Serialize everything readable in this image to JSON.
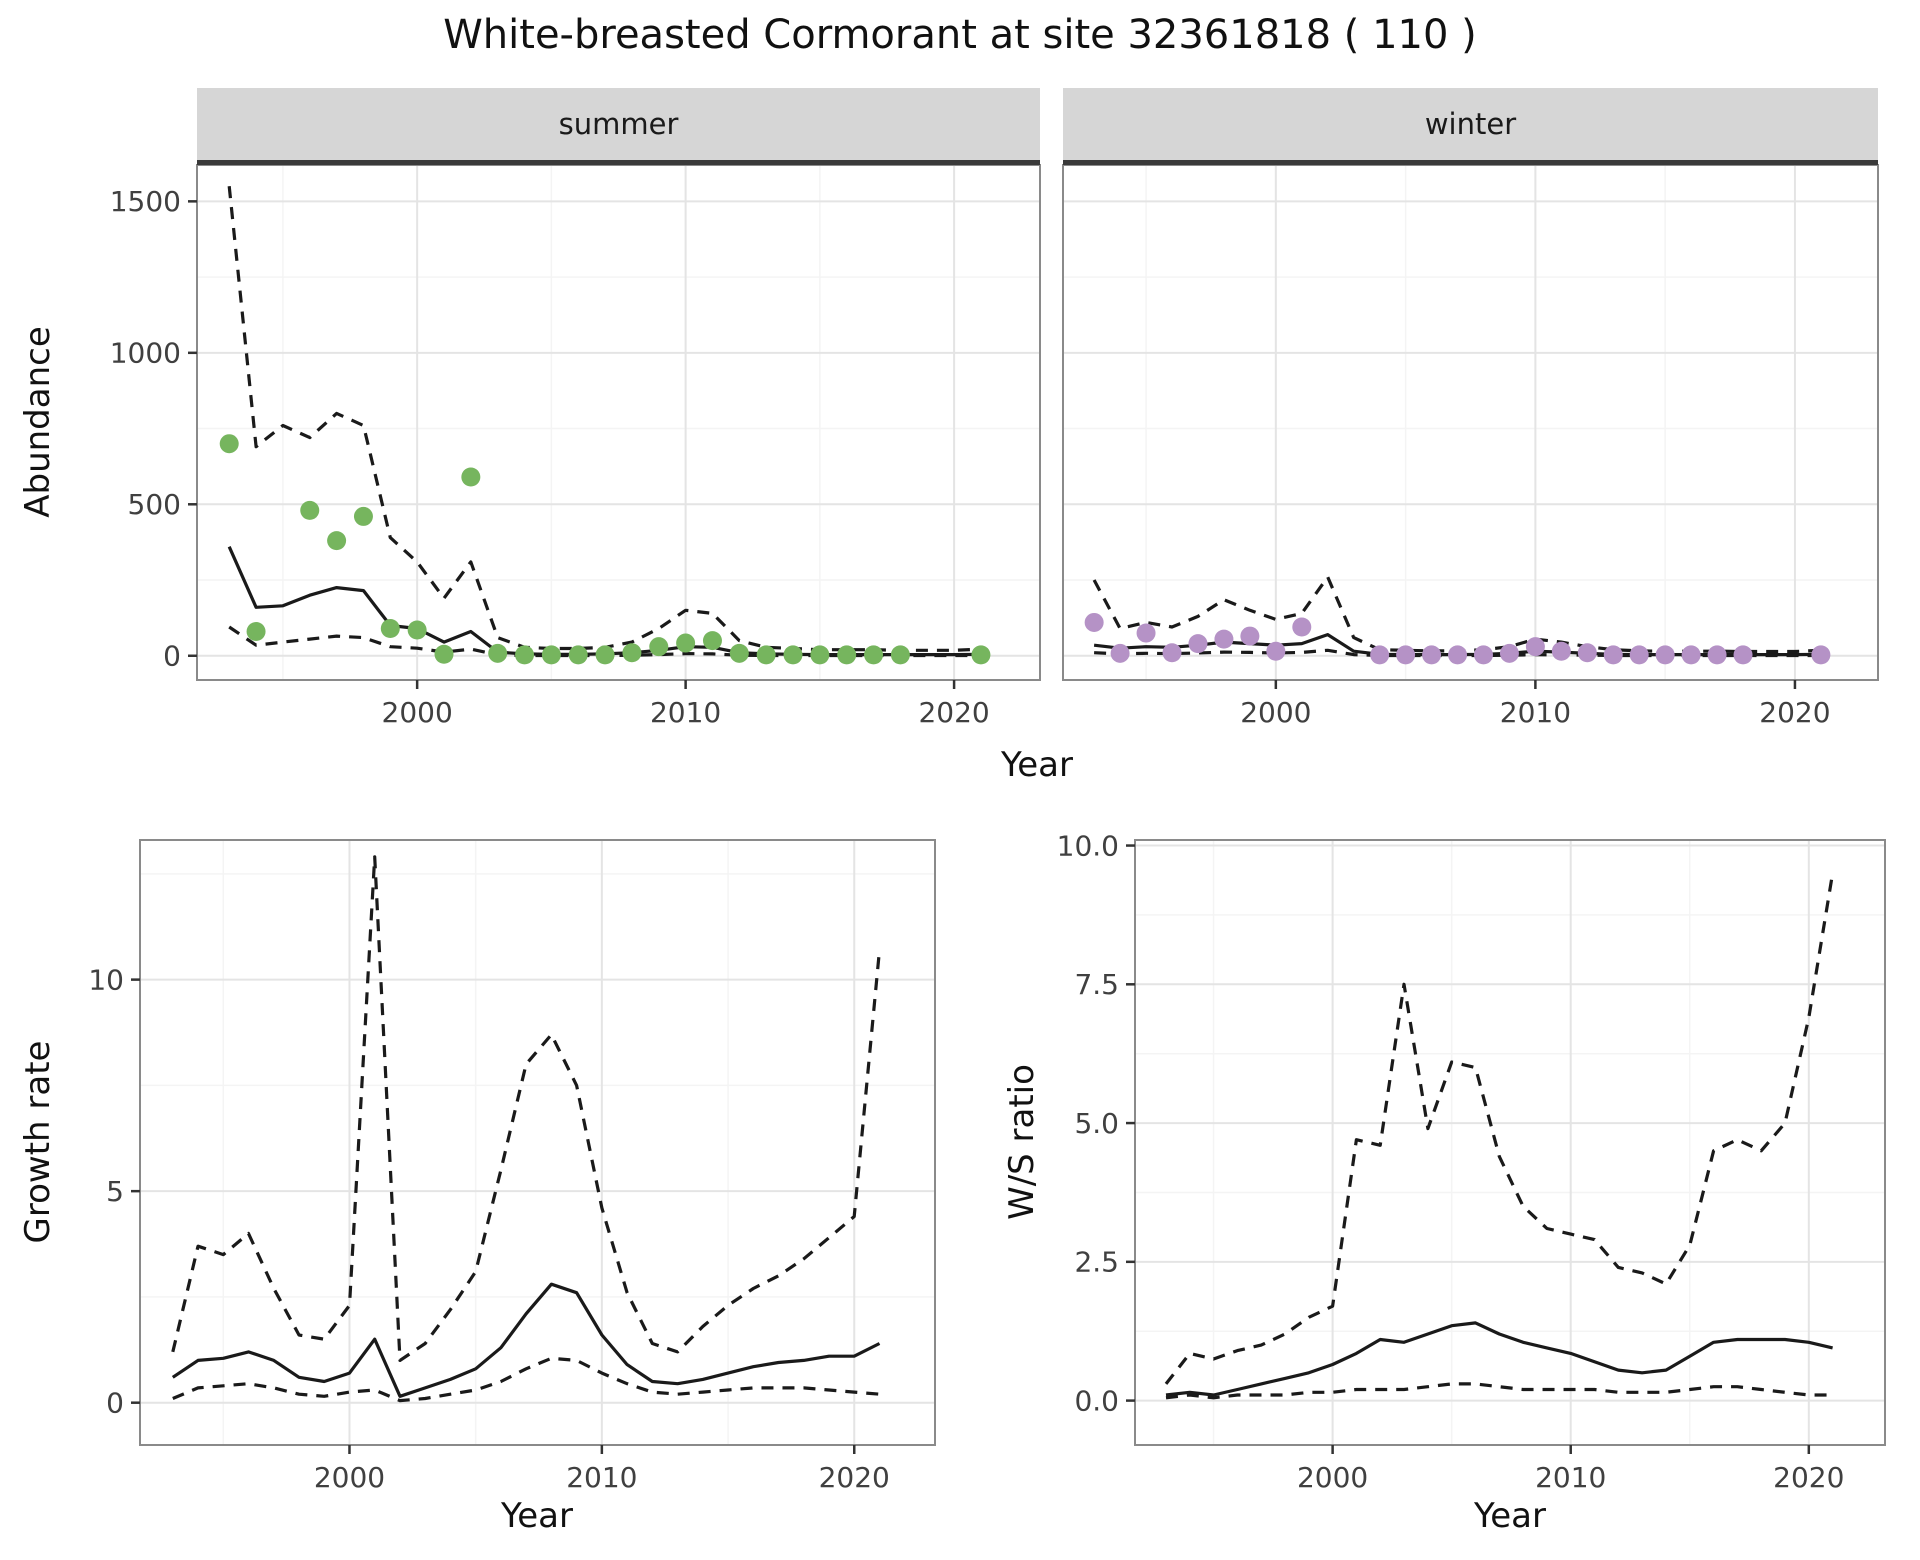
{
  "title": "White-breasted Cormorant at site 32361818 ( 110 )",
  "colors": {
    "summer_points": "#76b55e",
    "winter_points": "#b592c6",
    "line": "#1a1a1a",
    "strip_background": "#d6d6d6",
    "grid_major": "#e4e4e4",
    "grid_minor": "#f4f4f4",
    "panel_border": "#8a8a8a",
    "axis": "#333333"
  },
  "chart_data": [
    {
      "id": "abundance",
      "type": "scatter",
      "title": "White-breasted Cormorant at site 32361818 ( 110 )",
      "xlabel": "Year",
      "ylabel": "Abundance",
      "grid": true,
      "legend": "none",
      "x": [
        1993,
        1994,
        1995,
        1996,
        1997,
        1998,
        1999,
        2000,
        2001,
        2002,
        2003,
        2004,
        2005,
        2006,
        2007,
        2008,
        2009,
        2010,
        2011,
        2012,
        2013,
        2014,
        2015,
        2016,
        2017,
        2018,
        2019,
        2020,
        2021
      ],
      "xticks": [
        2000,
        2010,
        2020
      ],
      "xtick_labels": [
        "2000",
        "2010",
        "2020"
      ],
      "yticks": [
        0,
        500,
        1000,
        1500
      ],
      "ytick_labels": [
        "0",
        "500",
        "1000",
        "1500"
      ],
      "xlim": [
        1991.8,
        2023.2
      ],
      "ylim": [
        -80,
        1620
      ],
      "facets": [
        {
          "label": "summer",
          "point_color": "#76b55e",
          "points": [
            700,
            80,
            null,
            480,
            380,
            460,
            90,
            85,
            5,
            590,
            8,
            3,
            3,
            3,
            3,
            10,
            30,
            42,
            50,
            8,
            3,
            3,
            3,
            3,
            3,
            3,
            null,
            null,
            3
          ],
          "series": [
            {
              "name": "fit",
              "style": "solid",
              "values": [
                360,
                160,
                165,
                200,
                225,
                215,
                100,
                90,
                45,
                80,
                12,
                6,
                5,
                5,
                6,
                10,
                18,
                30,
                28,
                10,
                6,
                5,
                4,
                4,
                4,
                4,
                4,
                4,
                5
              ]
            },
            {
              "name": "upper95",
              "style": "dashed",
              "values": [
                1550,
                690,
                760,
                720,
                800,
                760,
                390,
                310,
                190,
                310,
                60,
                28,
                24,
                24,
                28,
                45,
                90,
                150,
                140,
                50,
                28,
                24,
                20,
                20,
                20,
                18,
                18,
                18,
                22
              ]
            },
            {
              "name": "lower95",
              "style": "dashed",
              "values": [
                95,
                35,
                45,
                55,
                65,
                60,
                30,
                25,
                12,
                22,
                3,
                1,
                1,
                1,
                1,
                2,
                4,
                7,
                6,
                2,
                1,
                1,
                1,
                1,
                1,
                1,
                1,
                1,
                1
              ]
            }
          ]
        },
        {
          "label": "winter",
          "point_color": "#b592c6",
          "points": [
            110,
            8,
            75,
            10,
            40,
            55,
            65,
            15,
            95,
            null,
            null,
            3,
            3,
            3,
            3,
            3,
            8,
            30,
            15,
            10,
            3,
            3,
            3,
            3,
            3,
            3,
            null,
            null,
            3
          ],
          "series": [
            {
              "name": "fit",
              "style": "solid",
              "values": [
                35,
                25,
                30,
                28,
                35,
                45,
                40,
                35,
                40,
                70,
                15,
                5,
                4,
                4,
                4,
                5,
                8,
                15,
                12,
                8,
                5,
                4,
                4,
                4,
                4,
                4,
                4,
                4,
                5
              ]
            },
            {
              "name": "upper95",
              "style": "dashed",
              "values": [
                250,
                90,
                110,
                95,
                130,
                185,
                150,
                120,
                140,
                260,
                60,
                20,
                18,
                16,
                16,
                20,
                30,
                55,
                45,
                30,
                20,
                16,
                15,
                15,
                15,
                14,
                14,
                14,
                18
              ]
            },
            {
              "name": "lower95",
              "style": "dashed",
              "values": [
                10,
                6,
                8,
                7,
                9,
                12,
                11,
                9,
                11,
                18,
                4,
                1,
                1,
                1,
                1,
                1,
                2,
                4,
                3,
                2,
                1,
                1,
                1,
                1,
                1,
                1,
                1,
                1,
                1
              ]
            }
          ]
        }
      ]
    },
    {
      "id": "growth_rate",
      "type": "line",
      "xlabel": "Year",
      "ylabel": "Growth rate",
      "grid": true,
      "legend": "none",
      "x": [
        1993,
        1994,
        1995,
        1996,
        1997,
        1998,
        1999,
        2000,
        2001,
        2002,
        2003,
        2004,
        2005,
        2006,
        2007,
        2008,
        2009,
        2010,
        2011,
        2012,
        2013,
        2014,
        2015,
        2016,
        2017,
        2018,
        2019,
        2020,
        2021
      ],
      "xticks": [
        2000,
        2010,
        2020
      ],
      "xtick_labels": [
        "2000",
        "2010",
        "2020"
      ],
      "yticks": [
        0,
        5,
        10
      ],
      "ytick_labels": [
        "0",
        "5",
        "10"
      ],
      "xlim": [
        1991.7,
        2023.2
      ],
      "ylim": [
        -1.0,
        13.3
      ],
      "series": [
        {
          "name": "fit",
          "style": "solid",
          "values": [
            0.6,
            1.0,
            1.05,
            1.2,
            1.0,
            0.6,
            0.5,
            0.7,
            1.5,
            0.15,
            0.35,
            0.55,
            0.8,
            1.3,
            2.1,
            2.8,
            2.6,
            1.6,
            0.9,
            0.5,
            0.45,
            0.55,
            0.7,
            0.85,
            0.95,
            1.0,
            1.1,
            1.1,
            1.4
          ]
        },
        {
          "name": "upper95",
          "style": "dashed",
          "values": [
            1.2,
            3.7,
            3.5,
            4.0,
            2.7,
            1.6,
            1.5,
            2.3,
            12.9,
            1.0,
            1.4,
            2.2,
            3.1,
            5.5,
            8.0,
            8.7,
            7.5,
            4.6,
            2.6,
            1.4,
            1.2,
            1.8,
            2.3,
            2.7,
            3.0,
            3.4,
            3.9,
            4.4,
            10.7
          ]
        },
        {
          "name": "lower95",
          "style": "dashed",
          "values": [
            0.1,
            0.35,
            0.4,
            0.45,
            0.35,
            0.2,
            0.15,
            0.25,
            0.3,
            0.05,
            0.1,
            0.2,
            0.3,
            0.5,
            0.8,
            1.05,
            1.0,
            0.7,
            0.45,
            0.25,
            0.2,
            0.25,
            0.3,
            0.35,
            0.35,
            0.35,
            0.3,
            0.25,
            0.2
          ]
        }
      ]
    },
    {
      "id": "ws_ratio",
      "type": "line",
      "xlabel": "Year",
      "ylabel": "W/S ratio",
      "grid": true,
      "legend": "none",
      "x": [
        1993,
        1994,
        1995,
        1996,
        1997,
        1998,
        1999,
        2000,
        2001,
        2002,
        2003,
        2004,
        2005,
        2006,
        2007,
        2008,
        2009,
        2010,
        2011,
        2012,
        2013,
        2014,
        2015,
        2016,
        2017,
        2018,
        2019,
        2020,
        2021
      ],
      "xticks": [
        2000,
        2010,
        2020
      ],
      "xtick_labels": [
        "2000",
        "2010",
        "2020"
      ],
      "yticks": [
        0,
        2.5,
        5,
        7.5,
        10
      ],
      "ytick_labels": [
        "0.0",
        "2.5",
        "5.0",
        "7.5",
        "10.0"
      ],
      "xlim": [
        1991.7,
        2023.2
      ],
      "ylim": [
        -0.8,
        10.1
      ],
      "series": [
        {
          "name": "fit",
          "style": "solid",
          "values": [
            0.1,
            0.15,
            0.1,
            0.2,
            0.3,
            0.4,
            0.5,
            0.65,
            0.85,
            1.1,
            1.05,
            1.2,
            1.35,
            1.4,
            1.2,
            1.05,
            0.95,
            0.85,
            0.7,
            0.55,
            0.5,
            0.55,
            0.8,
            1.05,
            1.1,
            1.1,
            1.1,
            1.05,
            0.95
          ]
        },
        {
          "name": "upper95",
          "style": "dashed",
          "values": [
            0.3,
            0.85,
            0.75,
            0.9,
            1.0,
            1.2,
            1.5,
            1.7,
            4.7,
            4.6,
            7.5,
            4.9,
            6.1,
            6.0,
            4.4,
            3.5,
            3.1,
            3.0,
            2.9,
            2.4,
            2.3,
            2.1,
            2.8,
            4.5,
            4.7,
            4.5,
            5.0,
            6.9,
            9.5
          ]
        },
        {
          "name": "lower95",
          "style": "dashed",
          "values": [
            0.05,
            0.1,
            0.05,
            0.1,
            0.1,
            0.1,
            0.15,
            0.15,
            0.2,
            0.2,
            0.2,
            0.25,
            0.3,
            0.3,
            0.25,
            0.2,
            0.2,
            0.2,
            0.2,
            0.15,
            0.15,
            0.15,
            0.2,
            0.25,
            0.25,
            0.2,
            0.15,
            0.1,
            0.1
          ]
        }
      ]
    }
  ]
}
